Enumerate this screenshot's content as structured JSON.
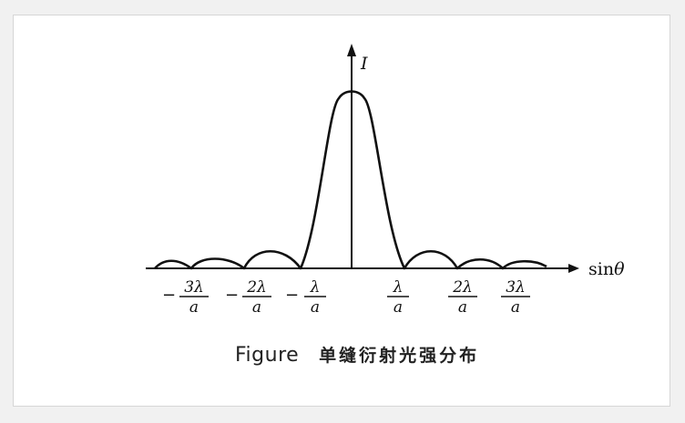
{
  "figure": {
    "caption_word": "Figure",
    "caption_title": "单缝衍射光强分布",
    "y_axis_label": "I",
    "x_axis_label_text": "sin",
    "x_axis_label_symbol": "θ",
    "ticks": [
      {
        "minus": "−",
        "numerator": "3λ",
        "denominator": "a"
      },
      {
        "minus": "−",
        "numerator": "2λ",
        "denominator": "a"
      },
      {
        "minus": "−",
        "numerator": "λ",
        "denominator": "a"
      },
      {
        "minus": "",
        "numerator": "λ",
        "denominator": "a"
      },
      {
        "minus": "",
        "numerator": "2λ",
        "denominator": "a"
      },
      {
        "minus": "",
        "numerator": "3λ",
        "denominator": "a"
      }
    ],
    "stroke_color": "#111111",
    "background_color": "#ffffff"
  }
}
